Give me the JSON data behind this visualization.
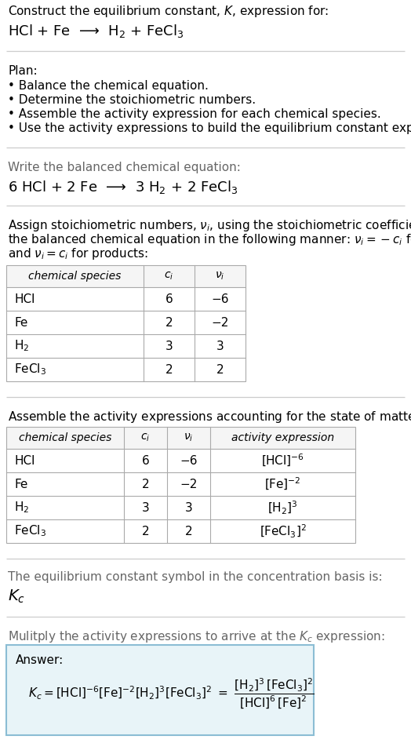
{
  "title_line1": "Construct the equilibrium constant, $K$, expression for:",
  "title_line2": "HCl + Fe  ⟶  H$_2$ + FeCl$_3$",
  "plan_header": "Plan:",
  "plan_items": [
    "• Balance the chemical equation.",
    "• Determine the stoichiometric numbers.",
    "• Assemble the activity expression for each chemical species.",
    "• Use the activity expressions to build the equilibrium constant expression."
  ],
  "balanced_header": "Write the balanced chemical equation:",
  "balanced_eq": "6 HCl + 2 Fe  ⟶  3 H$_2$ + 2 FeCl$_3$",
  "stoich_intro_lines": [
    "Assign stoichiometric numbers, $\\nu_i$, using the stoichiometric coefficients, $c_i$, from",
    "the balanced chemical equation in the following manner: $\\nu_i = -c_i$ for reactants",
    "and $\\nu_i = c_i$ for products:"
  ],
  "table1_headers": [
    "chemical species",
    "$c_i$",
    "$\\nu_i$"
  ],
  "table1_data": [
    [
      "HCl",
      "6",
      "−6"
    ],
    [
      "Fe",
      "2",
      "−2"
    ],
    [
      "H$_2$",
      "3",
      "3"
    ],
    [
      "FeCl$_3$",
      "2",
      "2"
    ]
  ],
  "activity_intro": "Assemble the activity expressions accounting for the state of matter and $\\nu_i$:",
  "table2_headers": [
    "chemical species",
    "$c_i$",
    "$\\nu_i$",
    "activity expression"
  ],
  "table2_data": [
    [
      "HCl",
      "6",
      "−6",
      "[HCl]$^{-6}$"
    ],
    [
      "Fe",
      "2",
      "−2",
      "[Fe]$^{-2}$"
    ],
    [
      "H$_2$",
      "3",
      "3",
      "[H$_2$]$^3$"
    ],
    [
      "FeCl$_3$",
      "2",
      "2",
      "[FeCl$_3$]$^2$"
    ]
  ],
  "kc_intro": "The equilibrium constant symbol in the concentration basis is:",
  "kc_symbol": "$K_c$",
  "multiply_intro": "Mulitply the activity expressions to arrive at the $K_c$ expression:",
  "answer_label": "Answer:",
  "bg_color": "#ffffff",
  "answer_bg": "#e8f4f8",
  "answer_border": "#8bbdd4",
  "text_color": "#000000",
  "gray_text": "#666666",
  "sep_color": "#cccccc",
  "table_border": "#aaaaaa",
  "header_bg": "#f5f5f5",
  "font_size": 11,
  "small_font": 10,
  "math_font_size": 11
}
